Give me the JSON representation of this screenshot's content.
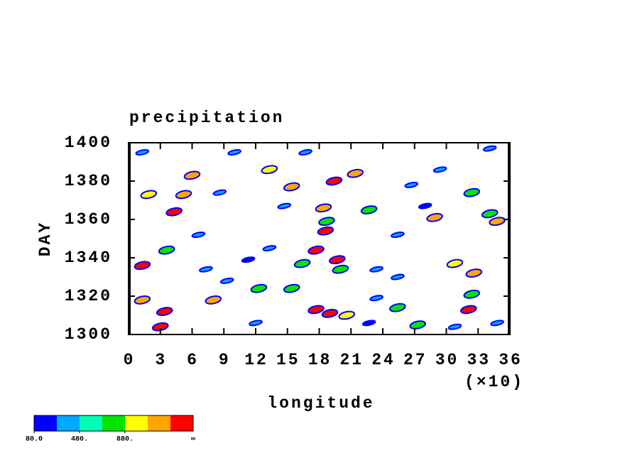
{
  "chart_data": {
    "type": "contour",
    "title": "precipitation",
    "xlabel": "longitude",
    "ylabel": "DAY",
    "x_multiplier": "(×10)",
    "xlim": [
      0,
      36
    ],
    "xticks": [
      0,
      3,
      6,
      9,
      12,
      15,
      18,
      21,
      24,
      27,
      30,
      33,
      36
    ],
    "ylim": [
      1300,
      1400
    ],
    "yticks": [
      1300,
      1320,
      1340,
      1360,
      1380,
      1400
    ],
    "levels": [
      80,
      280,
      480,
      680,
      880,
      1080,
      1280
    ],
    "colors": [
      "#0000ff",
      "#00a8ff",
      "#00ffb4",
      "#00e600",
      "#ffff00",
      "#ffa500",
      "#ff0000"
    ],
    "colorbar_ticks": [
      {
        "value": 80,
        "label": "80.0"
      },
      {
        "value": 480,
        "label": "480."
      },
      {
        "value": 880,
        "label": "880."
      }
    ],
    "colorbar_end_label": "∞",
    "x": [
      1.9,
      1.3,
      4.3,
      3.6,
      5.2,
      18.7,
      18.6,
      17.7,
      19.0,
      17.7,
      20.6,
      20.0,
      16.4,
      15.4,
      12.3,
      8.0,
      3.4,
      1.3,
      6.0,
      13.3,
      15.4,
      19.4,
      21.4,
      22.7,
      25.4,
      27.3,
      32.1,
      32.4,
      32.6,
      30.8,
      34.8,
      34.1,
      32.4,
      28.9,
      28.0,
      3.0,
      18.4,
      19.7,
      22.7,
      11.3,
      9.3,
      8.6,
      23.4,
      25.4,
      26.7,
      29.4,
      34.1,
      16.7,
      10.0,
      1.3,
      12.0,
      30.8,
      34.8,
      6.6,
      13.3,
      25.4,
      23.4,
      14.7,
      7.3
    ],
    "y": [
      1373,
      1336,
      1364,
      1344,
      1373,
      1359,
      1354,
      1344,
      1311,
      1313,
      1310,
      1334,
      1337,
      1324,
      1324,
      1318,
      1312,
      1318,
      1383,
      1386,
      1377,
      1380,
      1384,
      1365,
      1314,
      1305,
      1313,
      1321,
      1332,
      1337,
      1359,
      1363,
      1374,
      1361,
      1367,
      1304,
      1366,
      1339,
      1306,
      1339,
      1328,
      1374,
      1334,
      1352,
      1378,
      1386,
      1397,
      1395,
      1395,
      1395,
      1306,
      1304,
      1306,
      1352,
      1345,
      1330,
      1319,
      1367,
      1334
    ],
    "values": [
      880,
      1280,
      1280,
      680,
      1080,
      680,
      1280,
      1280,
      1280,
      1280,
      880,
      680,
      680,
      680,
      680,
      1080,
      1280,
      1080,
      1080,
      880,
      1080,
      1280,
      1080,
      680,
      680,
      680,
      1280,
      680,
      1080,
      880,
      1080,
      680,
      680,
      1080,
      80,
      1280,
      1080,
      1280,
      80,
      80,
      280,
      280,
      280,
      280,
      280,
      280,
      280,
      280,
      280,
      280,
      280,
      280,
      280,
      280,
      280,
      280,
      280,
      280,
      280
    ]
  }
}
